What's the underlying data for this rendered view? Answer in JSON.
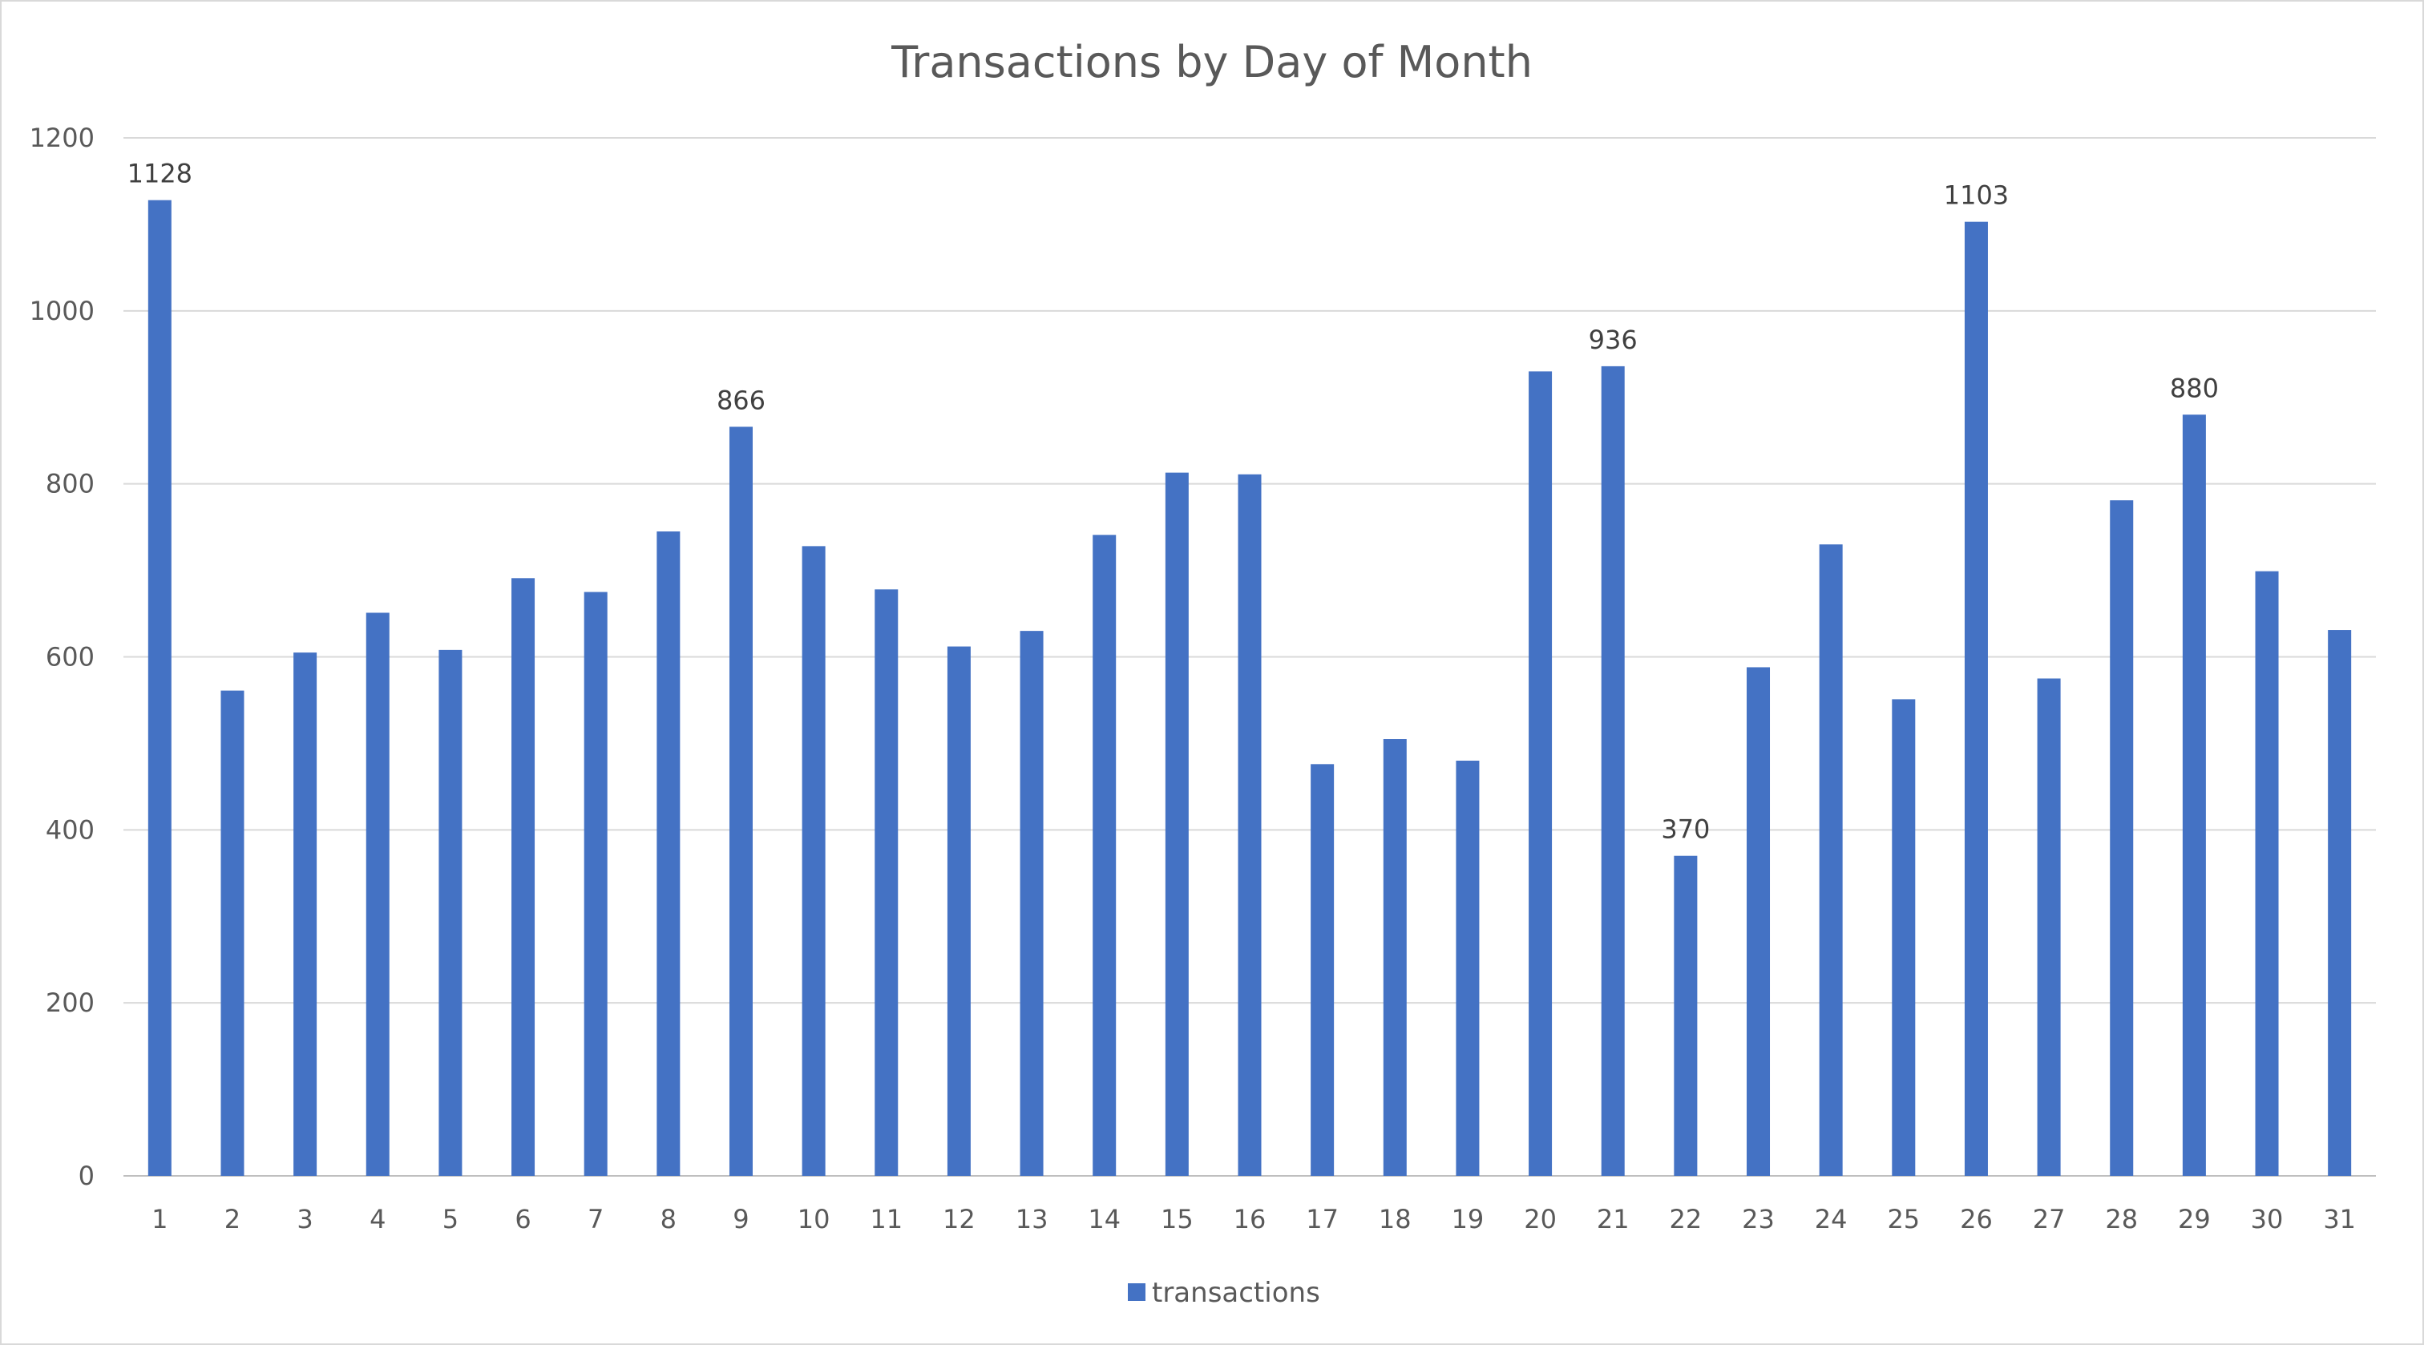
{
  "chart_data": {
    "type": "bar",
    "title": "Transactions by Day of Month",
    "categories": [
      "1",
      "2",
      "3",
      "4",
      "5",
      "6",
      "7",
      "8",
      "9",
      "10",
      "11",
      "12",
      "13",
      "14",
      "15",
      "16",
      "17",
      "18",
      "19",
      "20",
      "21",
      "22",
      "23",
      "24",
      "25",
      "26",
      "27",
      "28",
      "29",
      "30",
      "31"
    ],
    "series": [
      {
        "name": "transactions",
        "color": "#4472C4",
        "values": [
          1128,
          561,
          605,
          651,
          608,
          691,
          675,
          745,
          866,
          728,
          678,
          612,
          630,
          741,
          813,
          811,
          476,
          505,
          480,
          930,
          936,
          370,
          588,
          730,
          551,
          1103,
          575,
          781,
          880,
          699,
          631
        ]
      }
    ],
    "data_labels": [
      {
        "category": "1",
        "value": 1128
      },
      {
        "category": "9",
        "value": 866
      },
      {
        "category": "21",
        "value": 936
      },
      {
        "category": "22",
        "value": 370
      },
      {
        "category": "26",
        "value": 1103
      },
      {
        "category": "29",
        "value": 880
      }
    ],
    "ylim": [
      0,
      1200
    ],
    "yticks": [
      0,
      200,
      400,
      600,
      800,
      1000,
      1200
    ],
    "xlabel": "",
    "ylabel": "",
    "grid": true,
    "legend": "bottom"
  }
}
